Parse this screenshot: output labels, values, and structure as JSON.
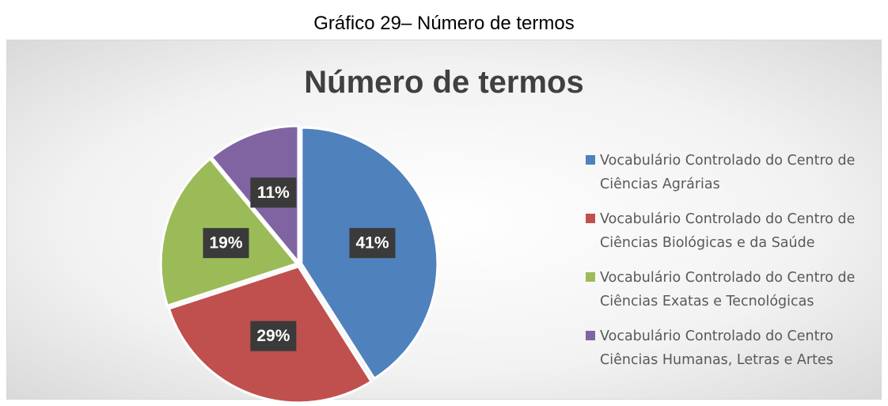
{
  "caption": "Gráfico 29– Número de termos",
  "chart_data": {
    "type": "pie",
    "title": "Número de termos",
    "categories": [
      "Vocabulário Controlado do Centro de Ciências Agrárias",
      "Vocabulário Controlado do Centro de Ciências Biológicas e da Saúde",
      "Vocabulário Controlado do Centro de Ciências Exatas e Tecnológicas",
      "Vocabulário Controlado do Centro Ciências Humanas, Letras e Artes"
    ],
    "values": [
      41,
      29,
      19,
      11
    ],
    "value_labels": [
      "41%",
      "29%",
      "19%",
      "11%"
    ],
    "colors": [
      "#4f81bd",
      "#c0504d",
      "#9bbb59",
      "#8064a2"
    ],
    "legend": "right"
  }
}
